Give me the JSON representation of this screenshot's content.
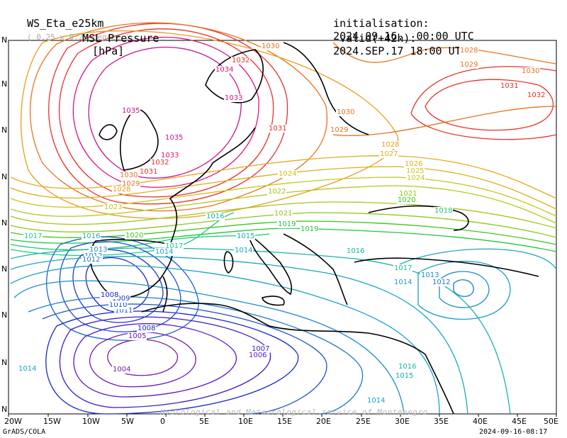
{
  "header": {
    "model": "WS_Eta_e25km",
    "resolution": "( 0.25 x 0.25 degree )",
    "field": "MSL Pressure",
    "units": "[hPa]",
    "init_label": "initialisation:",
    "init_value": "2024.09.16.  00:00 UTC",
    "valid_label": "valid(+42h):",
    "valid_value": "2024.SEP.17 18:00 UTC"
  },
  "axes": {
    "x_ticks": [
      "20W",
      "15W",
      "10W",
      "5W",
      "0",
      "5E",
      "10E",
      "15E",
      "20E",
      "25E",
      "30E",
      "35E",
      "40E",
      "45E",
      "50E"
    ],
    "y_ticks": [
      "N",
      "N",
      "N",
      "N",
      "N",
      "N",
      "N",
      "N",
      "N",
      "N"
    ]
  },
  "footer": {
    "left": "GrADS/COLA",
    "right": "2024-09-16-08:17",
    "watermark": "Hydrological and Meteorological service of Montenegro"
  },
  "isobar_labels": [
    {
      "t": "1030",
      "c": "#e8731e"
    },
    {
      "t": "1028",
      "c": "#e8731e"
    },
    {
      "t": "1029",
      "c": "#e8731e"
    },
    {
      "t": "1030",
      "c": "#e8731e"
    },
    {
      "t": "1031",
      "c": "#e8312b"
    },
    {
      "t": "1032",
      "c": "#e8312b"
    },
    {
      "t": "1032",
      "c": "#e8312b"
    },
    {
      "t": "1034",
      "c": "#e0147a"
    },
    {
      "t": "1033",
      "c": "#e0147a"
    },
    {
      "t": "1035",
      "c": "#c8118c"
    },
    {
      "t": "1035",
      "c": "#c8118c"
    },
    {
      "t": "1033",
      "c": "#e0147a"
    },
    {
      "t": "1032",
      "c": "#e8312b"
    },
    {
      "t": "1031",
      "c": "#e8312b"
    },
    {
      "t": "1030",
      "c": "#e8731e"
    },
    {
      "t": "1031",
      "c": "#e8312b"
    },
    {
      "t": "1030",
      "c": "#e8731e"
    },
    {
      "t": "1029",
      "c": "#e8731e"
    },
    {
      "t": "1029",
      "c": "#e8731e"
    },
    {
      "t": "1028",
      "c": "#e89c1e"
    },
    {
      "t": "1028",
      "c": "#e89c1e"
    },
    {
      "t": "1027",
      "c": "#e8a81e"
    },
    {
      "t": "1026",
      "c": "#d6b21a"
    },
    {
      "t": "1025",
      "c": "#d6c21a"
    },
    {
      "t": "1024",
      "c": "#c8c81a"
    },
    {
      "t": "1024",
      "c": "#c8c81a"
    },
    {
      "t": "1023",
      "c": "#b6c81a"
    },
    {
      "t": "1022",
      "c": "#a0c81a"
    },
    {
      "t": "1021",
      "c": "#8cc81a"
    },
    {
      "t": "1021",
      "c": "#8cc81a"
    },
    {
      "t": "1020",
      "c": "#3cc81a"
    },
    {
      "t": "1020",
      "c": "#3cc81a"
    },
    {
      "t": "1019",
      "c": "#1ac83c"
    },
    {
      "t": "1019",
      "c": "#1ac83c"
    },
    {
      "t": "1018",
      "c": "#1ac86e"
    },
    {
      "t": "1017",
      "c": "#1ac88c"
    },
    {
      "t": "1017",
      "c": "#1ac88c"
    },
    {
      "t": "1016",
      "c": "#1ab4a0"
    },
    {
      "t": "1016",
      "c": "#1ab4a0"
    },
    {
      "t": "1015",
      "c": "#1aa8b4"
    },
    {
      "t": "1014",
      "c": "#1aa0c8"
    },
    {
      "t": "1014",
      "c": "#1aa0c8"
    },
    {
      "t": "1013",
      "c": "#1a8cc8"
    },
    {
      "t": "1012",
      "c": "#1a78c8"
    },
    {
      "t": "1012",
      "c": "#1a78c8"
    },
    {
      "t": "1011",
      "c": "#1a64c8"
    },
    {
      "t": "1010",
      "c": "#1a50c8"
    },
    {
      "t": "1009",
      "c": "#1a3cc8"
    },
    {
      "t": "1008",
      "c": "#1a28c8"
    },
    {
      "t": "1008",
      "c": "#1a28c8"
    },
    {
      "t": "1007",
      "c": "#3c1ac8"
    },
    {
      "t": "1006",
      "c": "#5a1ac8"
    },
    {
      "t": "1005",
      "c": "#6e1ab4"
    },
    {
      "t": "1004",
      "c": "#7a1aa0"
    },
    {
      "t": "1014",
      "c": "#1aa0c8"
    },
    {
      "t": "1016",
      "c": "#1ab4a0"
    },
    {
      "t": "1015",
      "c": "#1aa8b4"
    },
    {
      "t": "1014",
      "c": "#1aa0c8"
    },
    {
      "t": "1013",
      "c": "#1a8cc8"
    },
    {
      "t": "1012",
      "c": "#1a78c8"
    },
    {
      "t": "1016",
      "c": "#1ab4a0"
    },
    {
      "t": "1017",
      "c": "#1ac88c"
    },
    {
      "t": "1014",
      "c": "#1aa0c8"
    }
  ]
}
